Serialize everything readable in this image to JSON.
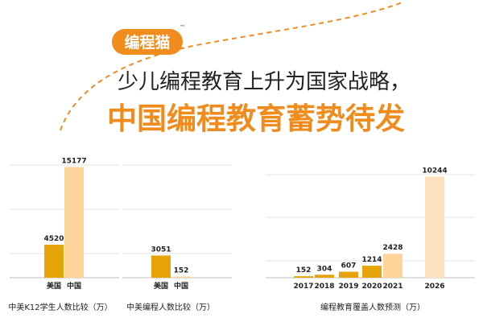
{
  "banner": {
    "logo": "编程猫",
    "trademark": "™",
    "headline_line1": "少儿编程教育上升为国家战略，",
    "headline_line2": "中国编程教育蓄势待发"
  },
  "colors": {
    "orange": "#f08c1e",
    "dark_gold": "#e6a30a",
    "light_peach": "#fdd49a",
    "pale_peach": "#fde1bd"
  },
  "chart_data": [
    {
      "type": "bar",
      "categories": [
        "美国",
        "中国"
      ],
      "values": [
        4520,
        15177
      ],
      "title": "中美K12学生人数比较（万）",
      "ylim": [
        0,
        16000
      ],
      "grid": true
    },
    {
      "type": "bar",
      "categories": [
        "美国",
        "中国"
      ],
      "values": [
        3051,
        152
      ],
      "title": "中美编程人数比较（万）",
      "ylim": [
        0,
        16000
      ],
      "grid": true
    },
    {
      "type": "bar",
      "categories": [
        "2017",
        "2018",
        "2019",
        "2020",
        "2021",
        "2026"
      ],
      "values": [
        152,
        304,
        607,
        1214,
        2428,
        10244
      ],
      "title": "编程教育覆盖人数预测（万）",
      "ylim": [
        0,
        11000
      ],
      "grid": true
    }
  ]
}
